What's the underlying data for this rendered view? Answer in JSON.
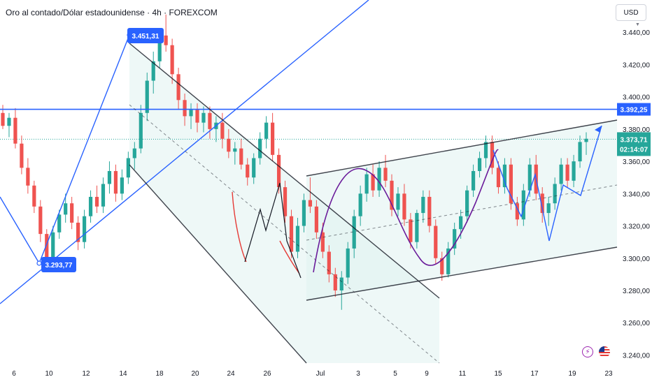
{
  "header": {
    "title": "Oro al contado/Dólar estadounidense · 4h · FOREXCOM",
    "currency": "USD"
  },
  "price_scale": {
    "ticks": [
      "3.440,00",
      "3.420,00",
      "3.400,00",
      "3.380,00",
      "3.360,00",
      "3.340,00",
      "3.320,00",
      "3.300,00",
      "3.280,00",
      "3.260,00",
      "3.240,00"
    ],
    "resistance_label": "3.392,25",
    "current_price_label": "3.373,71",
    "countdown_label": "02:14:07"
  },
  "time_scale": {
    "ticks": [
      "6",
      "10",
      "12",
      "14",
      "18",
      "20",
      "24",
      "26",
      "Jul",
      "3",
      "5",
      "9",
      "11",
      "15",
      "17",
      "19",
      "23"
    ]
  },
  "annotations": {
    "high_label": "3.451,31",
    "low_label": "3.293,77"
  },
  "colors": {
    "up": "#26a69a",
    "down": "#ef5350",
    "trend": "#2962ff",
    "channel": "#131722",
    "curve": "#6a1b9a",
    "curve_red": "#e53935"
  },
  "icons": {
    "bolt": "lightning-icon",
    "flag": "us-flag-icon"
  },
  "chart_data": {
    "type": "candlestick",
    "symbol": "Oro al contado/Dólar estadounidense",
    "timeframe": "4h",
    "ylim": [
      3235,
      3460
    ],
    "resistance": 3392.25,
    "current_price": 3373.71,
    "candles": [
      [
        3390,
        3395,
        3380,
        3382
      ],
      [
        3382,
        3390,
        3375,
        3387
      ],
      [
        3387,
        3393,
        3368,
        3371
      ],
      [
        3371,
        3376,
        3352,
        3356
      ],
      [
        3356,
        3362,
        3340,
        3345
      ],
      [
        3345,
        3348,
        3328,
        3332
      ],
      [
        3332,
        3336,
        3310,
        3315
      ],
      [
        3315,
        3318,
        3294,
        3298
      ],
      [
        3298,
        3320,
        3295,
        3316
      ],
      [
        3316,
        3330,
        3312,
        3327
      ],
      [
        3327,
        3340,
        3322,
        3334
      ],
      [
        3334,
        3338,
        3318,
        3322
      ],
      [
        3322,
        3326,
        3305,
        3310
      ],
      [
        3310,
        3330,
        3306,
        3326
      ],
      [
        3326,
        3342,
        3322,
        3338
      ],
      [
        3338,
        3345,
        3328,
        3332
      ],
      [
        3332,
        3350,
        3328,
        3346
      ],
      [
        3346,
        3360,
        3340,
        3354
      ],
      [
        3354,
        3358,
        3335,
        3340
      ],
      [
        3340,
        3355,
        3336,
        3350
      ],
      [
        3350,
        3366,
        3346,
        3362
      ],
      [
        3362,
        3372,
        3355,
        3368
      ],
      [
        3368,
        3395,
        3365,
        3390
      ],
      [
        3390,
        3415,
        3385,
        3410
      ],
      [
        3410,
        3428,
        3402,
        3422
      ],
      [
        3422,
        3442,
        3418,
        3438
      ],
      [
        3438,
        3451,
        3428,
        3432
      ],
      [
        3432,
        3436,
        3408,
        3414
      ],
      [
        3414,
        3418,
        3392,
        3398
      ],
      [
        3398,
        3402,
        3382,
        3388
      ],
      [
        3388,
        3396,
        3380,
        3392
      ],
      [
        3392,
        3396,
        3378,
        3384
      ],
      [
        3384,
        3394,
        3378,
        3390
      ],
      [
        3390,
        3394,
        3374,
        3380
      ],
      [
        3380,
        3388,
        3372,
        3384
      ],
      [
        3384,
        3390,
        3368,
        3374
      ],
      [
        3374,
        3380,
        3362,
        3366
      ],
      [
        3366,
        3372,
        3358,
        3368
      ],
      [
        3368,
        3374,
        3355,
        3358
      ],
      [
        3358,
        3362,
        3345,
        3350
      ],
      [
        3350,
        3365,
        3346,
        3362
      ],
      [
        3362,
        3378,
        3358,
        3374
      ],
      [
        3374,
        3388,
        3368,
        3384
      ],
      [
        3384,
        3390,
        3360,
        3364
      ],
      [
        3364,
        3368,
        3340,
        3344
      ],
      [
        3344,
        3348,
        3322,
        3326
      ],
      [
        3326,
        3330,
        3300,
        3304
      ],
      [
        3304,
        3325,
        3300,
        3320
      ],
      [
        3320,
        3340,
        3316,
        3336
      ],
      [
        3336,
        3350,
        3328,
        3332
      ],
      [
        3332,
        3336,
        3312,
        3316
      ],
      [
        3316,
        3322,
        3300,
        3304
      ],
      [
        3304,
        3308,
        3285,
        3290
      ],
      [
        3290,
        3294,
        3276,
        3280
      ],
      [
        3280,
        3292,
        3268,
        3288
      ],
      [
        3288,
        3310,
        3284,
        3306
      ],
      [
        3306,
        3330,
        3300,
        3326
      ],
      [
        3326,
        3345,
        3320,
        3340
      ],
      [
        3340,
        3356,
        3335,
        3352
      ],
      [
        3352,
        3358,
        3338,
        3342
      ],
      [
        3342,
        3360,
        3338,
        3356
      ],
      [
        3356,
        3364,
        3344,
        3348
      ],
      [
        3348,
        3352,
        3326,
        3330
      ],
      [
        3330,
        3344,
        3326,
        3340
      ],
      [
        3340,
        3346,
        3320,
        3324
      ],
      [
        3324,
        3328,
        3306,
        3310
      ],
      [
        3310,
        3330,
        3306,
        3328
      ],
      [
        3328,
        3342,
        3322,
        3338
      ],
      [
        3338,
        3342,
        3316,
        3320
      ],
      [
        3320,
        3324,
        3296,
        3300
      ],
      [
        3300,
        3304,
        3286,
        3290
      ],
      [
        3290,
        3310,
        3288,
        3306
      ],
      [
        3306,
        3322,
        3302,
        3318
      ],
      [
        3318,
        3330,
        3312,
        3326
      ],
      [
        3326,
        3345,
        3322,
        3342
      ],
      [
        3342,
        3358,
        3338,
        3354
      ],
      [
        3354,
        3366,
        3350,
        3362
      ],
      [
        3362,
        3376,
        3356,
        3372
      ],
      [
        3372,
        3376,
        3352,
        3356
      ],
      [
        3356,
        3360,
        3340,
        3344
      ],
      [
        3344,
        3362,
        3340,
        3358
      ],
      [
        3358,
        3362,
        3330,
        3334
      ],
      [
        3334,
        3338,
        3320,
        3324
      ],
      [
        3324,
        3346,
        3320,
        3342
      ],
      [
        3342,
        3362,
        3338,
        3358
      ],
      [
        3358,
        3364,
        3336,
        3340
      ],
      [
        3340,
        3344,
        3322,
        3328
      ],
      [
        3328,
        3338,
        3320,
        3334
      ],
      [
        3334,
        3350,
        3330,
        3346
      ],
      [
        3346,
        3362,
        3342,
        3358
      ],
      [
        3358,
        3362,
        3344,
        3348
      ],
      [
        3348,
        3364,
        3344,
        3360
      ],
      [
        3360,
        3376,
        3356,
        3372
      ],
      [
        3372,
        3378,
        3364,
        3374
      ]
    ]
  }
}
